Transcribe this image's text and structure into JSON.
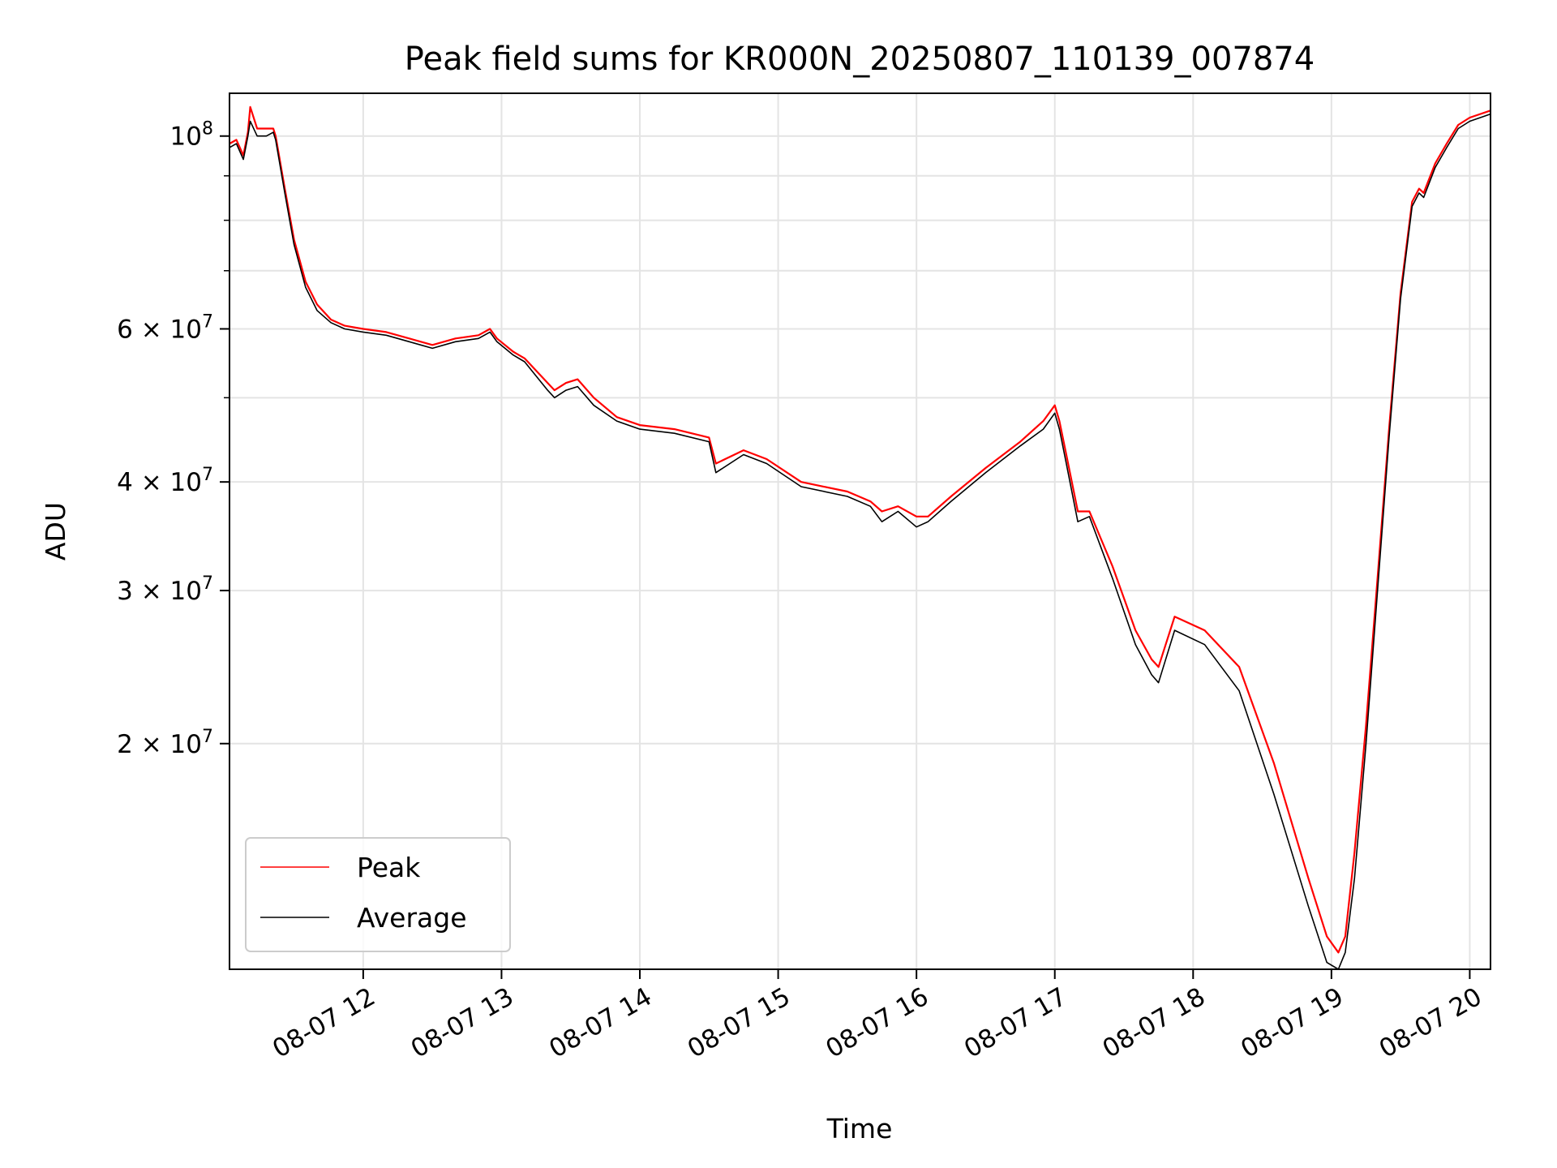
{
  "chart_data": {
    "type": "line",
    "title": "Peak field sums for KR000N_20250807_110139_007874",
    "xlabel": "Time",
    "ylabel": "ADU",
    "x_axis": {
      "kind": "time",
      "range": [
        "2025-08-07 11:02",
        "2025-08-07 20:09"
      ],
      "ticks": [
        {
          "value": "2025-08-07 12:00",
          "label": "08-07 12"
        },
        {
          "value": "2025-08-07 13:00",
          "label": "08-07 13"
        },
        {
          "value": "2025-08-07 14:00",
          "label": "08-07 14"
        },
        {
          "value": "2025-08-07 15:00",
          "label": "08-07 15"
        },
        {
          "value": "2025-08-07 16:00",
          "label": "08-07 16"
        },
        {
          "value": "2025-08-07 17:00",
          "label": "08-07 17"
        },
        {
          "value": "2025-08-07 18:00",
          "label": "08-07 18"
        },
        {
          "value": "2025-08-07 19:00",
          "label": "08-07 19"
        },
        {
          "value": "2025-08-07 20:00",
          "label": "08-07 20"
        }
      ]
    },
    "y_axis": {
      "scale": "log",
      "range": [
        11000000,
        112000000
      ],
      "major_ticks": [
        {
          "value": 100000000,
          "base": "10",
          "exp": "8"
        },
        {
          "value": 60000000,
          "base": "6 × 10",
          "exp": "7"
        },
        {
          "value": 40000000,
          "base": "4 × 10",
          "exp": "7"
        },
        {
          "value": 30000000,
          "base": "3 × 10",
          "exp": "7"
        },
        {
          "value": 20000000,
          "base": "2 × 10",
          "exp": "7"
        }
      ],
      "minor_gridlines": [
        90000000,
        80000000,
        70000000,
        50000000
      ]
    },
    "grid": true,
    "legend_position": "lower-left",
    "colors": {
      "peak": "#ff0000",
      "average": "#000000"
    },
    "series": [
      {
        "name": "Average",
        "color": "#000000",
        "x": [
          "2025-08-07 11:02",
          "2025-08-07 11:05",
          "2025-08-07 11:08",
          "2025-08-07 11:10",
          "2025-08-07 11:11",
          "2025-08-07 11:14",
          "2025-08-07 11:18",
          "2025-08-07 11:21",
          "2025-08-07 11:22",
          "2025-08-07 11:26",
          "2025-08-07 11:30",
          "2025-08-07 11:35",
          "2025-08-07 11:40",
          "2025-08-07 11:46",
          "2025-08-07 11:52",
          "2025-08-07 12:00",
          "2025-08-07 12:10",
          "2025-08-07 12:20",
          "2025-08-07 12:30",
          "2025-08-07 12:40",
          "2025-08-07 12:50",
          "2025-08-07 12:55",
          "2025-08-07 12:58",
          "2025-08-07 13:05",
          "2025-08-07 13:10",
          "2025-08-07 13:20",
          "2025-08-07 13:23",
          "2025-08-07 13:28",
          "2025-08-07 13:33",
          "2025-08-07 13:40",
          "2025-08-07 13:50",
          "2025-08-07 14:00",
          "2025-08-07 14:15",
          "2025-08-07 14:30",
          "2025-08-07 14:33",
          "2025-08-07 14:45",
          "2025-08-07 14:55",
          "2025-08-07 15:10",
          "2025-08-07 15:30",
          "2025-08-07 15:40",
          "2025-08-07 15:45",
          "2025-08-07 15:52",
          "2025-08-07 16:00",
          "2025-08-07 16:05",
          "2025-08-07 16:15",
          "2025-08-07 16:30",
          "2025-08-07 16:45",
          "2025-08-07 16:55",
          "2025-08-07 17:00",
          "2025-08-07 17:02",
          "2025-08-07 17:05",
          "2025-08-07 17:10",
          "2025-08-07 17:15",
          "2025-08-07 17:25",
          "2025-08-07 17:35",
          "2025-08-07 17:42",
          "2025-08-07 17:45",
          "2025-08-07 17:52",
          "2025-08-07 18:05",
          "2025-08-07 18:20",
          "2025-08-07 18:35",
          "2025-08-07 18:50",
          "2025-08-07 18:58",
          "2025-08-07 19:03",
          "2025-08-07 19:06",
          "2025-08-07 19:10",
          "2025-08-07 19:15",
          "2025-08-07 19:20",
          "2025-08-07 19:25",
          "2025-08-07 19:30",
          "2025-08-07 19:35",
          "2025-08-07 19:38",
          "2025-08-07 19:40",
          "2025-08-07 19:45",
          "2025-08-07 19:50",
          "2025-08-07 19:55",
          "2025-08-07 20:00",
          "2025-08-07 20:09"
        ],
        "y": [
          97000000,
          98000000,
          94000000,
          100000000,
          104000000,
          100000000,
          100000000,
          101000000,
          99000000,
          86000000,
          75000000,
          67000000,
          63000000,
          61000000,
          60000000,
          59500000,
          59000000,
          58000000,
          57000000,
          58000000,
          58500000,
          59500000,
          58000000,
          56000000,
          55000000,
          51000000,
          50000000,
          51000000,
          51500000,
          49000000,
          47000000,
          46000000,
          45500000,
          44500000,
          41000000,
          43000000,
          42000000,
          39500000,
          38500000,
          37500000,
          36000000,
          37000000,
          35500000,
          36000000,
          38000000,
          41000000,
          44000000,
          46000000,
          48000000,
          46000000,
          42000000,
          36000000,
          36500000,
          31000000,
          26000000,
          24000000,
          23500000,
          27000000,
          26000000,
          23000000,
          17500000,
          13000000,
          11200000,
          11000000,
          11500000,
          14000000,
          20000000,
          30000000,
          45000000,
          65000000,
          83000000,
          86000000,
          85000000,
          92000000,
          97000000,
          102000000,
          104000000,
          106000000
        ]
      },
      {
        "name": "Peak",
        "color": "#ff0000",
        "x": [
          "2025-08-07 11:02",
          "2025-08-07 11:05",
          "2025-08-07 11:08",
          "2025-08-07 11:10",
          "2025-08-07 11:11",
          "2025-08-07 11:14",
          "2025-08-07 11:18",
          "2025-08-07 11:21",
          "2025-08-07 11:22",
          "2025-08-07 11:26",
          "2025-08-07 11:30",
          "2025-08-07 11:35",
          "2025-08-07 11:40",
          "2025-08-07 11:46",
          "2025-08-07 11:52",
          "2025-08-07 12:00",
          "2025-08-07 12:10",
          "2025-08-07 12:20",
          "2025-08-07 12:30",
          "2025-08-07 12:40",
          "2025-08-07 12:50",
          "2025-08-07 12:55",
          "2025-08-07 12:58",
          "2025-08-07 13:05",
          "2025-08-07 13:10",
          "2025-08-07 13:20",
          "2025-08-07 13:23",
          "2025-08-07 13:28",
          "2025-08-07 13:33",
          "2025-08-07 13:40",
          "2025-08-07 13:50",
          "2025-08-07 14:00",
          "2025-08-07 14:15",
          "2025-08-07 14:30",
          "2025-08-07 14:33",
          "2025-08-07 14:45",
          "2025-08-07 14:55",
          "2025-08-07 15:10",
          "2025-08-07 15:30",
          "2025-08-07 15:40",
          "2025-08-07 15:45",
          "2025-08-07 15:52",
          "2025-08-07 16:00",
          "2025-08-07 16:05",
          "2025-08-07 16:15",
          "2025-08-07 16:30",
          "2025-08-07 16:45",
          "2025-08-07 16:55",
          "2025-08-07 17:00",
          "2025-08-07 17:02",
          "2025-08-07 17:05",
          "2025-08-07 17:10",
          "2025-08-07 17:15",
          "2025-08-07 17:25",
          "2025-08-07 17:35",
          "2025-08-07 17:42",
          "2025-08-07 17:45",
          "2025-08-07 17:52",
          "2025-08-07 18:05",
          "2025-08-07 18:20",
          "2025-08-07 18:35",
          "2025-08-07 18:50",
          "2025-08-07 18:58",
          "2025-08-07 19:03",
          "2025-08-07 19:06",
          "2025-08-07 19:10",
          "2025-08-07 19:15",
          "2025-08-07 19:20",
          "2025-08-07 19:25",
          "2025-08-07 19:30",
          "2025-08-07 19:35",
          "2025-08-07 19:38",
          "2025-08-07 19:40",
          "2025-08-07 19:45",
          "2025-08-07 19:50",
          "2025-08-07 19:55",
          "2025-08-07 20:00",
          "2025-08-07 20:09"
        ],
        "y": [
          98000000,
          99000000,
          95000000,
          101000000,
          108000000,
          102000000,
          102000000,
          102000000,
          100000000,
          87000000,
          76000000,
          68000000,
          64000000,
          61500000,
          60500000,
          60000000,
          59500000,
          58500000,
          57500000,
          58500000,
          59000000,
          60000000,
          58500000,
          56500000,
          55500000,
          52000000,
          51000000,
          52000000,
          52500000,
          50000000,
          47500000,
          46500000,
          46000000,
          45000000,
          42000000,
          43500000,
          42500000,
          40000000,
          39000000,
          38000000,
          37000000,
          37500000,
          36500000,
          36500000,
          38500000,
          41500000,
          44500000,
          47000000,
          49000000,
          47000000,
          43000000,
          37000000,
          37000000,
          32000000,
          27000000,
          25000000,
          24500000,
          28000000,
          27000000,
          24500000,
          19000000,
          14000000,
          12000000,
          11500000,
          12000000,
          15000000,
          21000000,
          31000000,
          46000000,
          66000000,
          84000000,
          87000000,
          86000000,
          93000000,
          98000000,
          103000000,
          105000000,
          107000000
        ]
      }
    ]
  }
}
